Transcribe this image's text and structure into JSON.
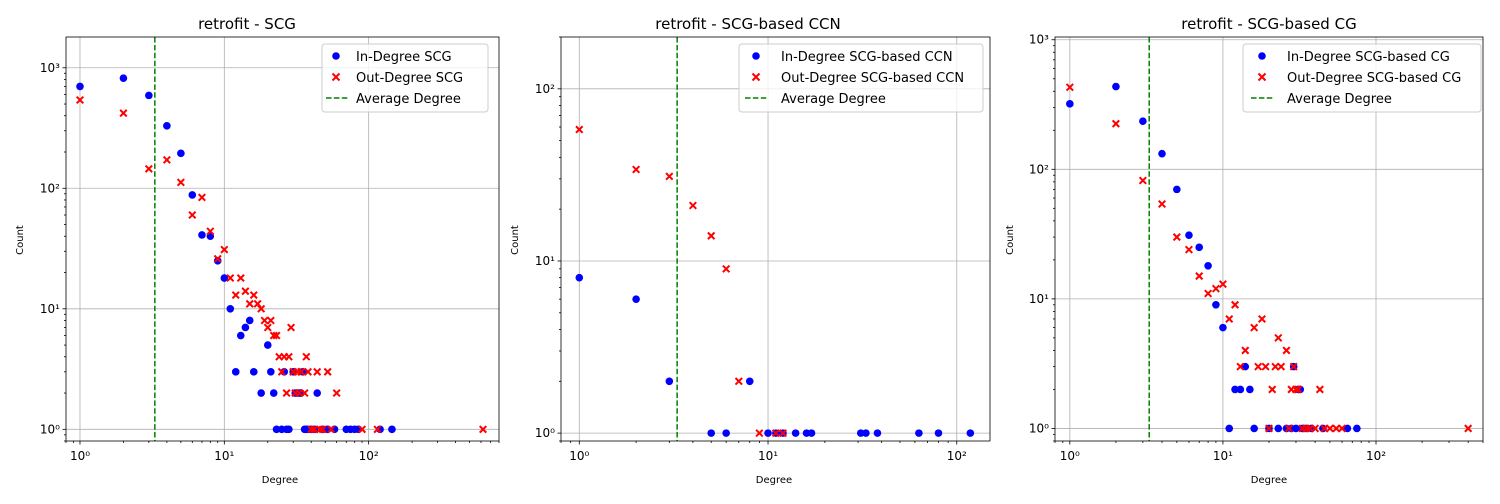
{
  "chart_data": [
    {
      "type": "scatter",
      "title": "retrofit - SCG",
      "xlabel": "Degree",
      "ylabel": "Count",
      "xscale": "log",
      "yscale": "log",
      "xlim": [
        0.8,
        800
      ],
      "ylim": [
        0.8,
        1800
      ],
      "grid": true,
      "legend_position": "top-right",
      "average_degree": 3.3,
      "series": [
        {
          "name": "In-Degree SCG",
          "marker": "circle",
          "color": "#0000ff",
          "points": [
            [
              1,
              700
            ],
            [
              2,
              820
            ],
            [
              3,
              590
            ],
            [
              4,
              330
            ],
            [
              5,
              195
            ],
            [
              6,
              88
            ],
            [
              7,
              41
            ],
            [
              8,
              40
            ],
            [
              9,
              25
            ],
            [
              10,
              18
            ],
            [
              11,
              10
            ],
            [
              12,
              3
            ],
            [
              13,
              6
            ],
            [
              14,
              7
            ],
            [
              15,
              8
            ],
            [
              16,
              3
            ],
            [
              18,
              2
            ],
            [
              20,
              5
            ],
            [
              21,
              3
            ],
            [
              22,
              2
            ],
            [
              26,
              3
            ],
            [
              28,
              1
            ],
            [
              30,
              3
            ],
            [
              31,
              2
            ],
            [
              32,
              2
            ],
            [
              33,
              2
            ],
            [
              34,
              2
            ],
            [
              35,
              3
            ],
            [
              37,
              1
            ],
            [
              44,
              2
            ],
            [
              23,
              1
            ],
            [
              25,
              1
            ],
            [
              27,
              1
            ],
            [
              36,
              1
            ],
            [
              38,
              1
            ],
            [
              40,
              1
            ],
            [
              42,
              1
            ],
            [
              48,
              1
            ],
            [
              52,
              1
            ],
            [
              58,
              1
            ],
            [
              70,
              1
            ],
            [
              75,
              1
            ],
            [
              80,
              1
            ],
            [
              85,
              1
            ],
            [
              120,
              1
            ],
            [
              145,
              1
            ]
          ]
        },
        {
          "name": "Out-Degree SCG",
          "marker": "x",
          "color": "#ff0000",
          "points": [
            [
              1,
              540
            ],
            [
              2,
              420
            ],
            [
              3,
              145
            ],
            [
              4,
              172
            ],
            [
              5,
              112
            ],
            [
              6,
              60
            ],
            [
              7,
              84
            ],
            [
              8,
              44
            ],
            [
              9,
              26
            ],
            [
              10,
              31
            ],
            [
              11,
              18
            ],
            [
              12,
              13
            ],
            [
              13,
              18
            ],
            [
              14,
              14
            ],
            [
              15,
              11
            ],
            [
              16,
              13
            ],
            [
              17,
              11
            ],
            [
              18,
              10
            ],
            [
              19,
              8
            ],
            [
              20,
              7
            ],
            [
              21,
              8
            ],
            [
              22,
              6
            ],
            [
              23,
              6
            ],
            [
              24,
              4
            ],
            [
              25,
              3
            ],
            [
              26,
              4
            ],
            [
              27,
              2
            ],
            [
              28,
              4
            ],
            [
              29,
              7
            ],
            [
              30,
              3
            ],
            [
              31,
              2
            ],
            [
              32,
              3
            ],
            [
              33,
              2
            ],
            [
              34,
              3
            ],
            [
              36,
              2
            ],
            [
              37,
              4
            ],
            [
              38,
              3
            ],
            [
              40,
              1
            ],
            [
              42,
              1
            ],
            [
              44,
              3
            ],
            [
              46,
              1
            ],
            [
              48,
              1
            ],
            [
              52,
              3
            ],
            [
              55,
              1
            ],
            [
              60,
              2
            ],
            [
              90,
              1
            ],
            [
              115,
              1
            ],
            [
              620,
              1
            ]
          ]
        }
      ]
    },
    {
      "type": "scatter",
      "title": "retrofit - SCG-based CCN",
      "xlabel": "Degree",
      "ylabel": "Count",
      "xscale": "log",
      "yscale": "log",
      "xlim": [
        0.8,
        150
      ],
      "ylim": [
        0.9,
        200
      ],
      "grid": true,
      "legend_position": "top-right",
      "average_degree": 3.3,
      "series": [
        {
          "name": "In-Degree SCG-based CCN",
          "marker": "circle",
          "color": "#0000ff",
          "points": [
            [
              1,
              8
            ],
            [
              2,
              6
            ],
            [
              3,
              2
            ],
            [
              5,
              1
            ],
            [
              6,
              1
            ],
            [
              8,
              2
            ],
            [
              10,
              1
            ],
            [
              11,
              1
            ],
            [
              12,
              1
            ],
            [
              14,
              1
            ],
            [
              16,
              1
            ],
            [
              17,
              1
            ],
            [
              31,
              1
            ],
            [
              33,
              1
            ],
            [
              38,
              1
            ],
            [
              63,
              1
            ],
            [
              80,
              1
            ],
            [
              118,
              1
            ]
          ]
        },
        {
          "name": "Out-Degree SCG-based CCN",
          "marker": "x",
          "color": "#ff0000",
          "points": [
            [
              1,
              58
            ],
            [
              2,
              34
            ],
            [
              3,
              31
            ],
            [
              4,
              21
            ],
            [
              5,
              14
            ],
            [
              6,
              9
            ],
            [
              7,
              2
            ],
            [
              9,
              1
            ],
            [
              11,
              1
            ],
            [
              12,
              1
            ]
          ]
        }
      ]
    },
    {
      "type": "scatter",
      "title": "retrofit - SCG-based CG",
      "xlabel": "Degree",
      "ylabel": "Count",
      "xscale": "log",
      "yscale": "log",
      "xlim": [
        0.8,
        500
      ],
      "ylim": [
        0.8,
        1050
      ],
      "grid": true,
      "legend_position": "top-right",
      "average_degree": 3.3,
      "series": [
        {
          "name": "In-Degree SCG-based CG",
          "marker": "circle",
          "color": "#0000ff",
          "points": [
            [
              1,
              320
            ],
            [
              2,
              435
            ],
            [
              3,
              235
            ],
            [
              4,
              132
            ],
            [
              5,
              70
            ],
            [
              6,
              31
            ],
            [
              7,
              25
            ],
            [
              8,
              18
            ],
            [
              9,
              9
            ],
            [
              10,
              6
            ],
            [
              11,
              1
            ],
            [
              12,
              2
            ],
            [
              13,
              2
            ],
            [
              14,
              3
            ],
            [
              15,
              2
            ],
            [
              16,
              1
            ],
            [
              20,
              1
            ],
            [
              23,
              1
            ],
            [
              26,
              1
            ],
            [
              28,
              1
            ],
            [
              29,
              3
            ],
            [
              30,
              1
            ],
            [
              31,
              2
            ],
            [
              32,
              2
            ],
            [
              33,
              1
            ],
            [
              35,
              1
            ],
            [
              38,
              1
            ],
            [
              45,
              1
            ],
            [
              65,
              1
            ],
            [
              75,
              1
            ]
          ]
        },
        {
          "name": "Out-Degree SCG-based CG",
          "marker": "x",
          "color": "#ff0000",
          "points": [
            [
              1,
              430
            ],
            [
              2,
              225
            ],
            [
              3,
              82
            ],
            [
              4,
              54
            ],
            [
              5,
              30
            ],
            [
              6,
              24
            ],
            [
              7,
              15
            ],
            [
              8,
              11
            ],
            [
              9,
              12
            ],
            [
              10,
              13
            ],
            [
              11,
              7
            ],
            [
              12,
              9
            ],
            [
              13,
              3
            ],
            [
              14,
              4
            ],
            [
              16,
              6
            ],
            [
              17,
              3
            ],
            [
              18,
              7
            ],
            [
              19,
              3
            ],
            [
              20,
              1
            ],
            [
              21,
              2
            ],
            [
              22,
              3
            ],
            [
              23,
              5
            ],
            [
              24,
              3
            ],
            [
              26,
              4
            ],
            [
              27,
              1
            ],
            [
              28,
              2
            ],
            [
              29,
              3
            ],
            [
              30,
              2
            ],
            [
              31,
              2
            ],
            [
              33,
              1
            ],
            [
              35,
              1
            ],
            [
              37,
              1
            ],
            [
              40,
              1
            ],
            [
              43,
              2
            ],
            [
              46,
              1
            ],
            [
              50,
              1
            ],
            [
              55,
              1
            ],
            [
              60,
              1
            ],
            [
              400,
              1
            ]
          ]
        }
      ]
    }
  ],
  "legend_extra_label": "Average Degree",
  "tick_labels": {
    "x": [
      "10⁰",
      "10¹",
      "10²"
    ],
    "y_scg": [
      "10⁰",
      "10¹",
      "10²",
      "10³"
    ],
    "y_ccn": [
      "10⁰",
      "10¹",
      "10²"
    ],
    "y_cg": [
      "10⁰",
      "10¹",
      "10²",
      "10³"
    ]
  }
}
